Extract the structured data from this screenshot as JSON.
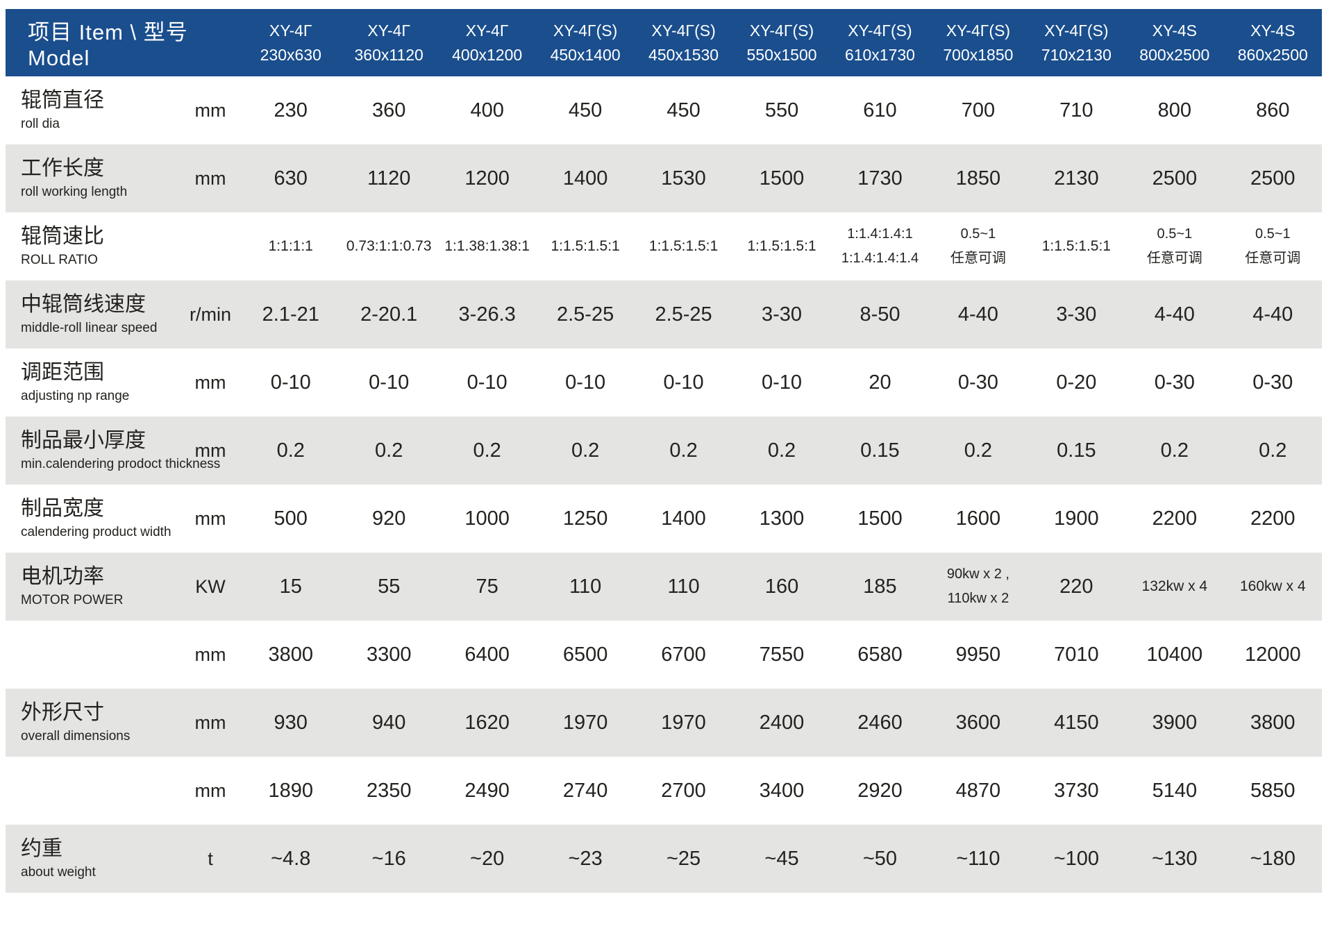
{
  "table": {
    "header": {
      "item_label": "项目 Item  \\  型号 Model",
      "models": [
        {
          "name": "XY-4Γ",
          "size": "230x630"
        },
        {
          "name": "XY-4Γ",
          "size": "360x1120"
        },
        {
          "name": "XY-4Γ",
          "size": "400x1200"
        },
        {
          "name": "XY-4Γ(S)",
          "size": "450x1400"
        },
        {
          "name": "XY-4Γ(S)",
          "size": "450x1530"
        },
        {
          "name": "XY-4Γ(S)",
          "size": "550x1500"
        },
        {
          "name": "XY-4Γ(S)",
          "size": "610x1730"
        },
        {
          "name": "XY-4Γ(S)",
          "size": "700x1850"
        },
        {
          "name": "XY-4Γ(S)",
          "size": "710x2130"
        },
        {
          "name": "XY-4S",
          "size": "800x2500"
        },
        {
          "name": "XY-4S",
          "size": "860x2500"
        }
      ]
    },
    "rows": [
      {
        "label_zh": "辊筒直径",
        "label_en": "roll dia",
        "unit": "mm",
        "values": [
          "230",
          "360",
          "400",
          "450",
          "450",
          "550",
          "610",
          "700",
          "710",
          "800",
          "860"
        ]
      },
      {
        "label_zh": "工作长度",
        "label_en": "roll working length",
        "unit": "mm",
        "values": [
          "630",
          "1120",
          "1200",
          "1400",
          "1530",
          "1500",
          "1730",
          "1850",
          "2130",
          "2500",
          "2500"
        ]
      },
      {
        "label_zh": "辊筒速比",
        "label_en": "ROLL RATIO",
        "unit": "",
        "values": [
          "1:1:1:1",
          "0.73:1:1:0.73",
          "1:1.38:1.38:1",
          "1:1.5:1.5:1",
          "1:1.5:1.5:1",
          "1:1.5:1.5:1",
          [
            "1:1.4:1.4:1",
            "1:1.4:1.4:1.4"
          ],
          [
            "0.5~1",
            "任意可调"
          ],
          "1:1.5:1.5:1",
          [
            "0.5~1",
            "任意可调"
          ],
          [
            "0.5~1",
            "任意可调"
          ]
        ]
      },
      {
        "label_zh": "中辊筒线速度",
        "label_en": "middle-roll linear speed",
        "unit": "r/min",
        "values": [
          "2.1-21",
          "2-20.1",
          "3-26.3",
          "2.5-25",
          "2.5-25",
          "3-30",
          "8-50",
          "4-40",
          "3-30",
          "4-40",
          "4-40"
        ]
      },
      {
        "label_zh": "调距范围",
        "label_en": "adjusting np range",
        "unit": "mm",
        "values": [
          "0-10",
          "0-10",
          "0-10",
          "0-10",
          "0-10",
          "0-10",
          "20",
          "0-30",
          "0-20",
          "0-30",
          "0-30"
        ]
      },
      {
        "label_zh": "制品最小厚度",
        "label_en": "min.calendering prodoct thickness",
        "unit": "mm",
        "values": [
          "0.2",
          "0.2",
          "0.2",
          "0.2",
          "0.2",
          "0.2",
          "0.15",
          "0.2",
          "0.15",
          "0.2",
          "0.2"
        ]
      },
      {
        "label_zh": "制品宽度",
        "label_en": "calendering product width",
        "unit": "mm",
        "values": [
          "500",
          "920",
          "1000",
          "1250",
          "1400",
          "1300",
          "1500",
          "1600",
          "1900",
          "2200",
          "2200"
        ]
      },
      {
        "label_zh": "电机功率",
        "label_en": "MOTOR POWER",
        "unit": "KW",
        "values": [
          "15",
          "55",
          "75",
          "110",
          "110",
          "160",
          "185",
          [
            "90kw x 2 ,",
            "110kw x 2"
          ],
          "220",
          "132kw x 4",
          "160kw x 4"
        ]
      },
      {
        "label_zh": "",
        "label_en": "",
        "unit": "mm",
        "values": [
          "3800",
          "3300",
          "6400",
          "6500",
          "6700",
          "7550",
          "6580",
          "9950",
          "7010",
          "10400",
          "12000"
        ]
      },
      {
        "label_zh": "外形尺寸",
        "label_en": "overall dimensions",
        "unit": "mm",
        "values": [
          "930",
          "940",
          "1620",
          "1970",
          "1970",
          "2400",
          "2460",
          "3600",
          "4150",
          "3900",
          "3800"
        ]
      },
      {
        "label_zh": "",
        "label_en": "",
        "unit": "mm",
        "values": [
          "1890",
          "2350",
          "2490",
          "2740",
          "2700",
          "3400",
          "2920",
          "4870",
          "3730",
          "5140",
          "5850"
        ]
      },
      {
        "label_zh": "约重",
        "label_en": "about weight",
        "unit": "t",
        "values": [
          "~4.8",
          "~16",
          "~20",
          "~23",
          "~25",
          "~45",
          "~50",
          "~110",
          "~100",
          "~130",
          "~180"
        ]
      }
    ]
  }
}
